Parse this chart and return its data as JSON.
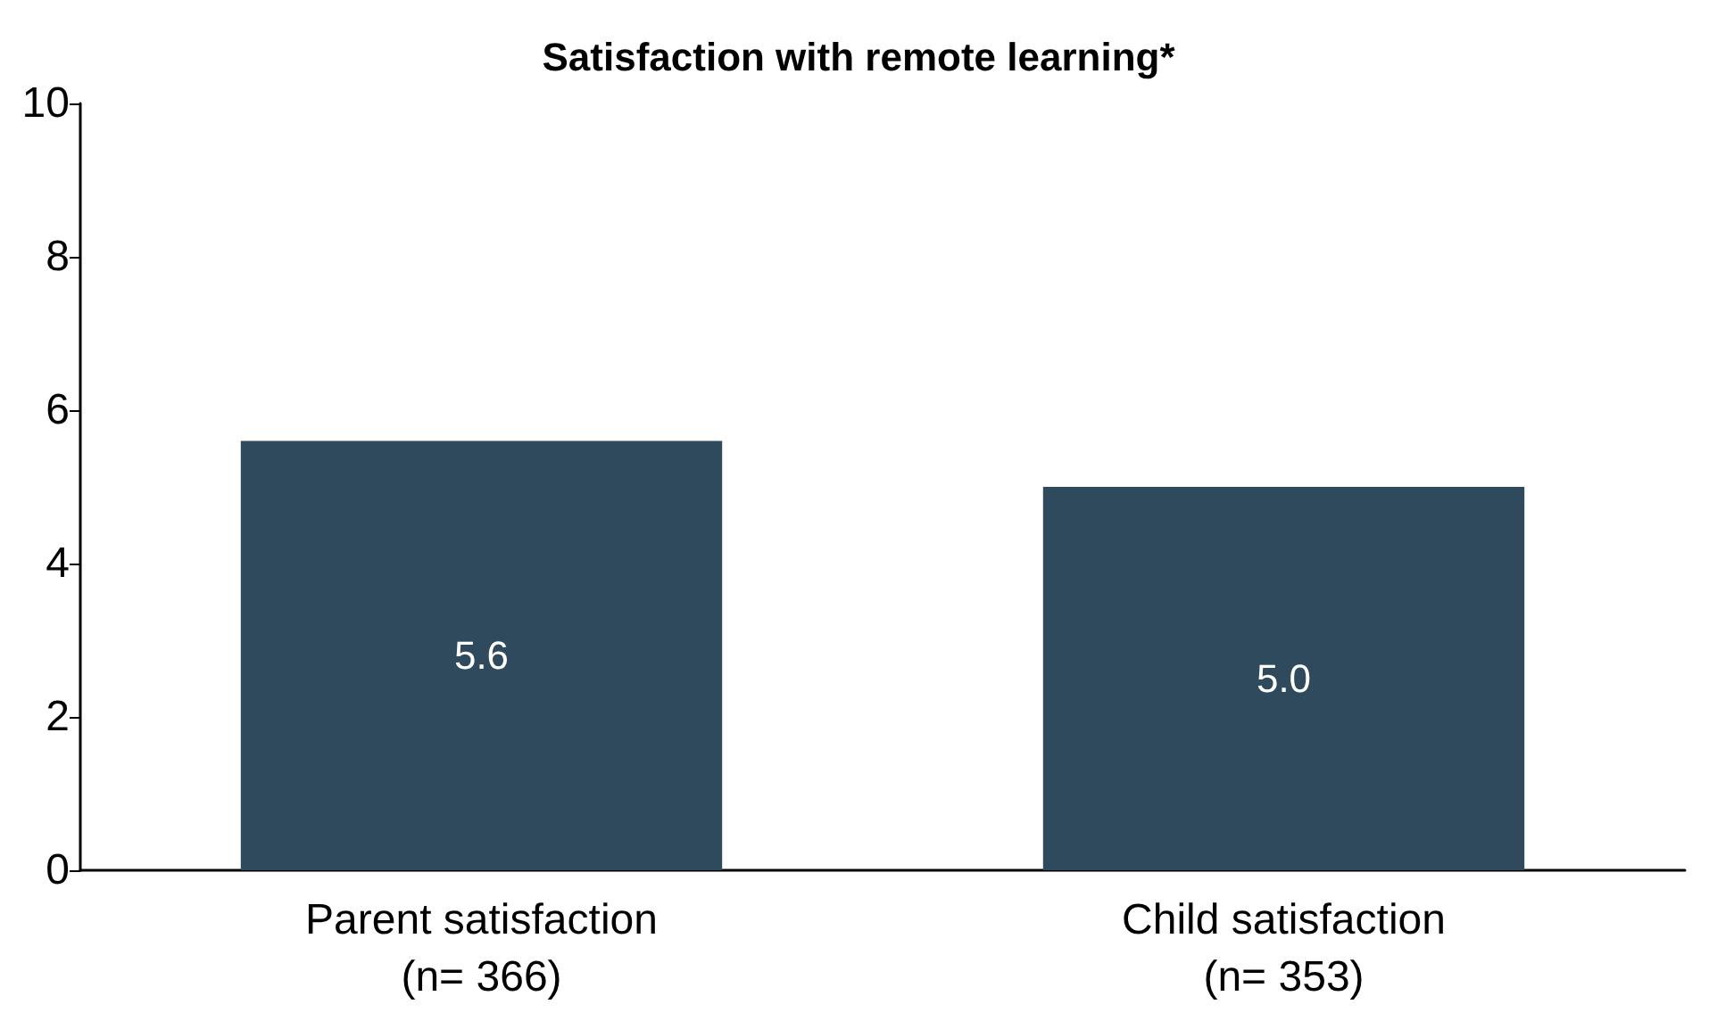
{
  "chart_data": {
    "type": "bar",
    "title": "Satisfaction with remote learning*",
    "categories": [
      "Parent satisfaction\n(n= 366)",
      "Child satisfaction\n(n= 353)"
    ],
    "values": [
      5.6,
      5.0
    ],
    "value_labels": [
      "5.6",
      "5.0"
    ],
    "color": "#2e4a5c",
    "ylim": [
      0,
      10
    ],
    "yticks": [
      0,
      2,
      4,
      6,
      8,
      10
    ],
    "grid": false
  }
}
